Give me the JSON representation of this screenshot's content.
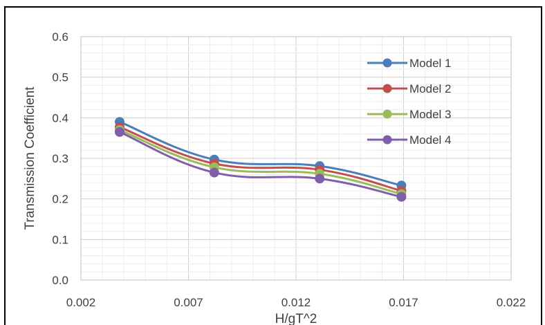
{
  "chart_data": {
    "type": "line",
    "title": "",
    "xlabel": "H/gT^2",
    "ylabel": "Transmission Coefficient",
    "xlim": [
      0.002,
      0.022
    ],
    "ylim": [
      0.0,
      0.6
    ],
    "x_ticks": [
      "0.002",
      "0.007",
      "0.012",
      "0.017",
      "0.022"
    ],
    "y_ticks": [
      "0.0",
      "0.1",
      "0.2",
      "0.3",
      "0.4",
      "0.5",
      "0.6"
    ],
    "grid": "major and minor",
    "smoothed": true,
    "legend_position": "top-right",
    "series": [
      {
        "name": "Model 1",
        "color": "#4a7ebb",
        "x": [
          0.0038,
          0.0082,
          0.0131,
          0.0169
        ],
        "y": [
          0.39,
          0.297,
          0.281,
          0.233
        ]
      },
      {
        "name": "Model 2",
        "color": "#c0504d",
        "x": [
          0.0038,
          0.0082,
          0.0131,
          0.0169
        ],
        "y": [
          0.377,
          0.287,
          0.272,
          0.22
        ]
      },
      {
        "name": "Model 3",
        "color": "#9bbb59",
        "x": [
          0.0038,
          0.0082,
          0.0131,
          0.0169
        ],
        "y": [
          0.37,
          0.278,
          0.262,
          0.212
        ]
      },
      {
        "name": "Model 4",
        "color": "#7f5fa9",
        "x": [
          0.0038,
          0.0082,
          0.0131,
          0.0169
        ],
        "y": [
          0.365,
          0.265,
          0.25,
          0.205
        ]
      }
    ]
  }
}
